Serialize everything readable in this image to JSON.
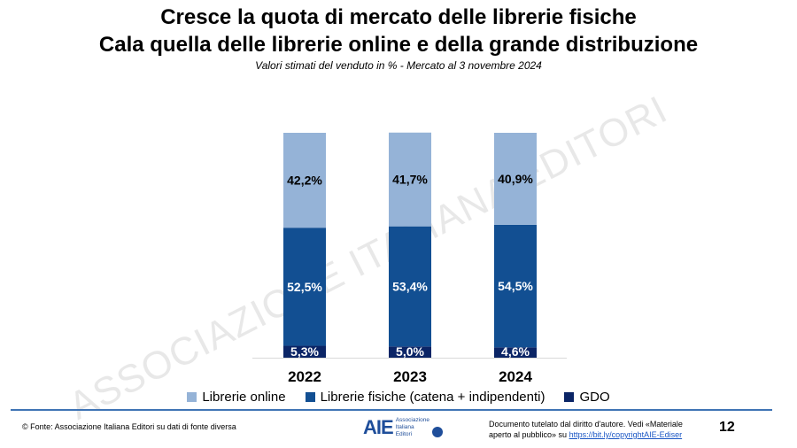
{
  "title_line1": "Cresce la quota di mercato delle librerie fisiche",
  "title_line2": "Cala quella delle librerie online e della grande distribuzione",
  "watermark": "ASSOCIAZIONE ITALIANA EDITORI",
  "chart_data": {
    "type": "bar",
    "stacked": true,
    "subtitle": "Valori stimati del venduto in % - Mercato al 3 novembre 2024",
    "categories": [
      "2022",
      "2023",
      "2024"
    ],
    "series": [
      {
        "name": "GDO",
        "values": [
          5.3,
          5.0,
          4.6
        ],
        "labels": [
          "5,3%",
          "5,0%",
          "4,6%"
        ],
        "color": "#0b2566",
        "label_color": "#ffffff"
      },
      {
        "name": "Librerie fisiche (catena + indipendenti)",
        "values": [
          52.5,
          53.4,
          54.5
        ],
        "labels": [
          "52,5%",
          "53,4%",
          "54,5%"
        ],
        "color": "#124f92",
        "label_color": "#ffffff"
      },
      {
        "name": "Librerie online",
        "values": [
          42.2,
          41.7,
          40.9
        ],
        "labels": [
          "42,2%",
          "41,7%",
          "40,9%"
        ],
        "color": "#95b3d7",
        "label_color": "#000000"
      }
    ],
    "legend_order": [
      "Librerie online",
      "Librerie fisiche (catena + indipendenti)",
      "GDO"
    ],
    "legend": "bottom",
    "grid": false,
    "ylim": [
      0,
      100
    ]
  },
  "footer": {
    "source": "© Fonte: Associazione Italiana Editori  su dati di fonte diversa",
    "logo": "AIE",
    "logo_text": [
      "Associazione",
      "Italiana",
      "Editori"
    ],
    "copyright_text": "Documento tutelato dal diritto d'autore. Vedi «Materiale aperto al pubblico» su ",
    "copyright_link": "https://bit.ly/copyrightAIE-Ediser",
    "page_number": "12"
  }
}
